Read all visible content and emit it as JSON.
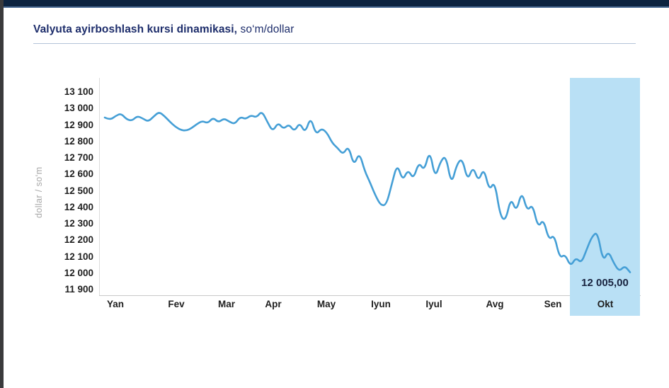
{
  "header": {
    "title_main": "Valyuta ayirboshlash kursi dinamikasi,",
    "title_unit": " so‘m/dollar"
  },
  "chart_data": {
    "type": "line",
    "title": "Valyuta ayirboshlash kursi dinamikasi, so‘m/dollar",
    "ylabel": "dollar / so‘m",
    "xlabel": "",
    "ylim": [
      11900,
      13100
    ],
    "y_ticks": [
      13100,
      13000,
      12900,
      12800,
      12700,
      12600,
      12500,
      12400,
      12300,
      12200,
      12100,
      12000,
      11900
    ],
    "y_tick_labels": [
      "13 100",
      "13 000",
      "12 900",
      "12 800",
      "12 700",
      "12 600",
      "12 500",
      "12 400",
      "12 300",
      "12 200",
      "12 100",
      "12 000",
      "11 900"
    ],
    "categories": [
      "Yan",
      "Fev",
      "Mar",
      "Apr",
      "May",
      "Iyun",
      "Iyul",
      "Avg",
      "Sen",
      "Okt"
    ],
    "values": [
      12945,
      12930,
      12955,
      12970,
      12935,
      12925,
      12955,
      12940,
      12920,
      12950,
      12980,
      12955,
      12920,
      12890,
      12870,
      12865,
      12880,
      12905,
      12925,
      12910,
      12945,
      12915,
      12940,
      12920,
      12905,
      12950,
      12935,
      12960,
      12945,
      12985,
      12920,
      12860,
      12915,
      12875,
      12905,
      12860,
      12915,
      12850,
      12950,
      12840,
      12880,
      12855,
      12790,
      12760,
      12720,
      12775,
      12650,
      12735,
      12620,
      12550,
      12470,
      12410,
      12415,
      12540,
      12665,
      12560,
      12630,
      12570,
      12675,
      12620,
      12750,
      12575,
      12680,
      12715,
      12535,
      12660,
      12700,
      12560,
      12650,
      12555,
      12640,
      12500,
      12560,
      12350,
      12315,
      12460,
      12370,
      12500,
      12375,
      12420,
      12275,
      12330,
      12200,
      12235,
      12090,
      12115,
      12040,
      12095,
      12060,
      12145,
      12225,
      12250,
      12070,
      12135,
      12060,
      12010,
      12045,
      12005
    ],
    "highlight": {
      "category": "Okt",
      "band_color": "#b9e0f5"
    },
    "last_value": 12005.0,
    "last_value_label": "12 005,00",
    "line_color": "#459fd6",
    "grid": false,
    "legend": false
  }
}
